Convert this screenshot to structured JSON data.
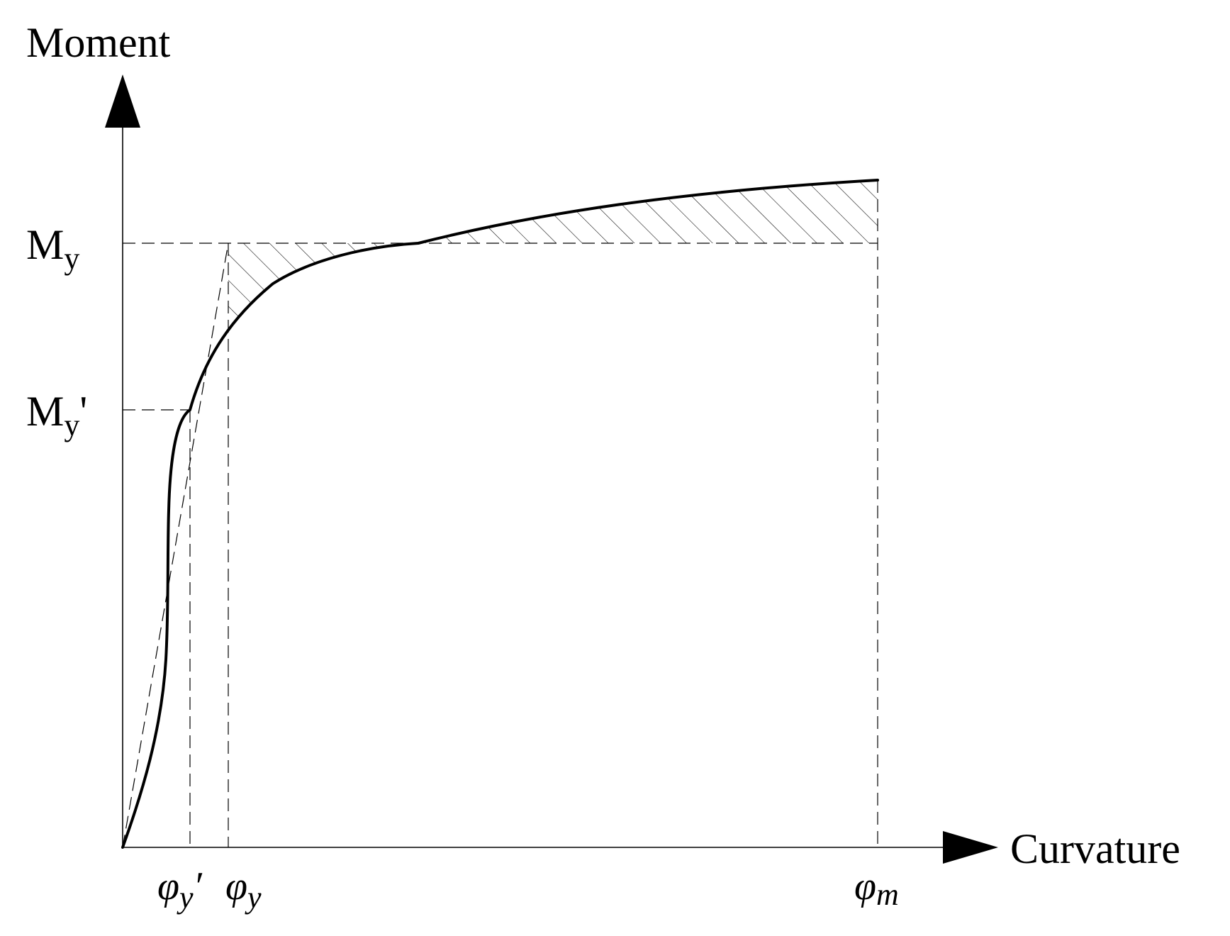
{
  "axes": {
    "y_label": "Moment",
    "x_label": "Curvature"
  },
  "y_ticks": {
    "my_main": "M",
    "my_sub": "y",
    "my_prime_main": "M",
    "my_prime_sub": "y",
    "my_prime_mark": "'"
  },
  "x_ticks": {
    "phi_y_prime_main": "φ",
    "phi_y_prime_sub": "y",
    "phi_y_prime_mark": "′",
    "phi_y_main": "φ",
    "phi_y_sub": "y",
    "phi_m_main": "φ",
    "phi_m_sub": "m"
  },
  "elements": {
    "curve_description": "moment-curvature curve",
    "hatch": "hatched energy-equivalent areas"
  }
}
